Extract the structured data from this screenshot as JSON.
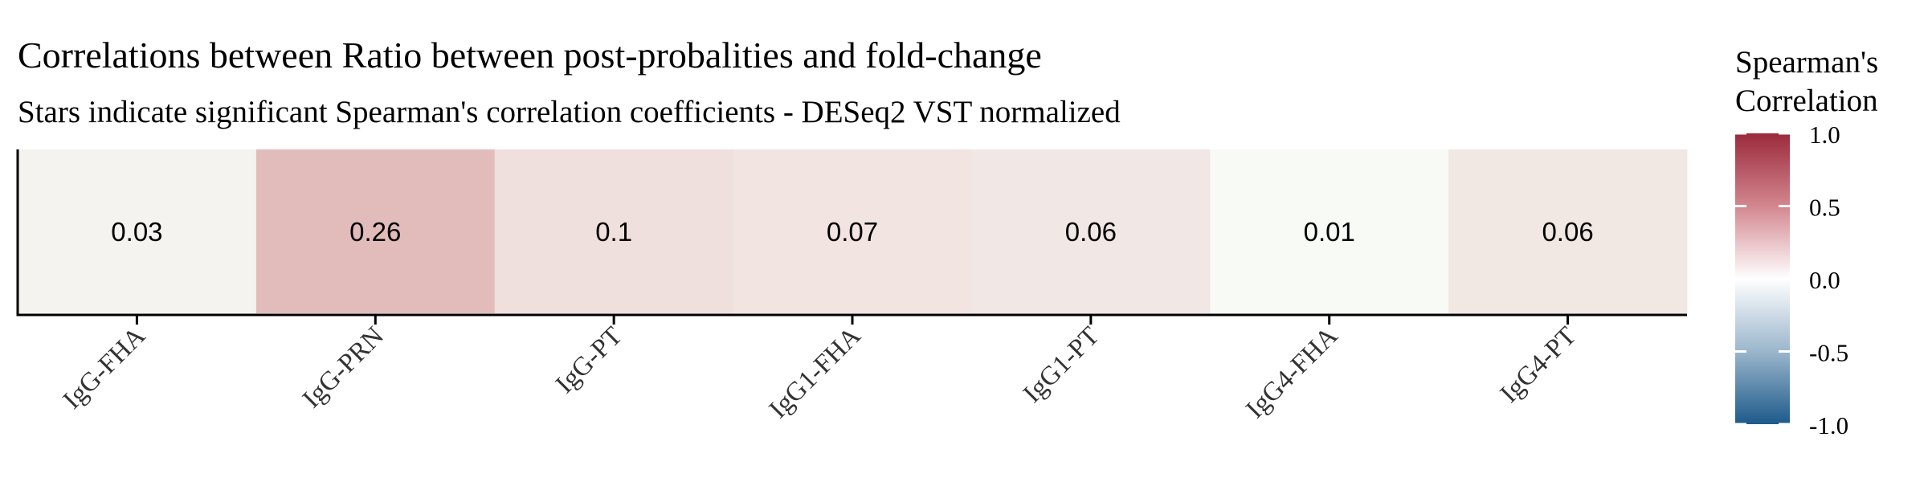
{
  "chart_data": {
    "type": "heatmap",
    "title": "Correlations between Ratio between post-probalities and fold-change",
    "subtitle": "Stars indicate significant Spearman's correlation coefficients - DESeq2 VST normalized",
    "xlabel": "",
    "ylabel": "",
    "categories": [
      "IgG-FHA",
      "IgG-PRN",
      "IgG-PT",
      "IgG1-FHA",
      "IgG1-PT",
      "IgG4-FHA",
      "IgG4-PT"
    ],
    "values": [
      0.03,
      0.26,
      0.1,
      0.07,
      0.06,
      0.01,
      0.06
    ],
    "value_labels": [
      "0.03",
      "0.26",
      "0.1",
      "0.07",
      "0.06",
      "0.01",
      "0.06"
    ],
    "legend": {
      "title_lines": [
        "Spearman's",
        "Correlation"
      ],
      "ticks": [
        1.0,
        0.5,
        0.0,
        -0.5,
        -1.0
      ],
      "tick_labels": [
        "1.0",
        "0.5",
        "0.0",
        "-0.5",
        "-1.0"
      ],
      "range": [
        -1.0,
        1.0
      ],
      "placement": "right",
      "colors": {
        "high": "#9b2a3c",
        "mid": "#ffffff",
        "low": "#1d5a8a"
      }
    },
    "tile_colors": [
      "#f5f3ef",
      "#e2bcbb",
      "#efdfdd",
      "#f1e4e1",
      "#f1e7e4",
      "#f7faf5",
      "#f1e7e3"
    ]
  }
}
